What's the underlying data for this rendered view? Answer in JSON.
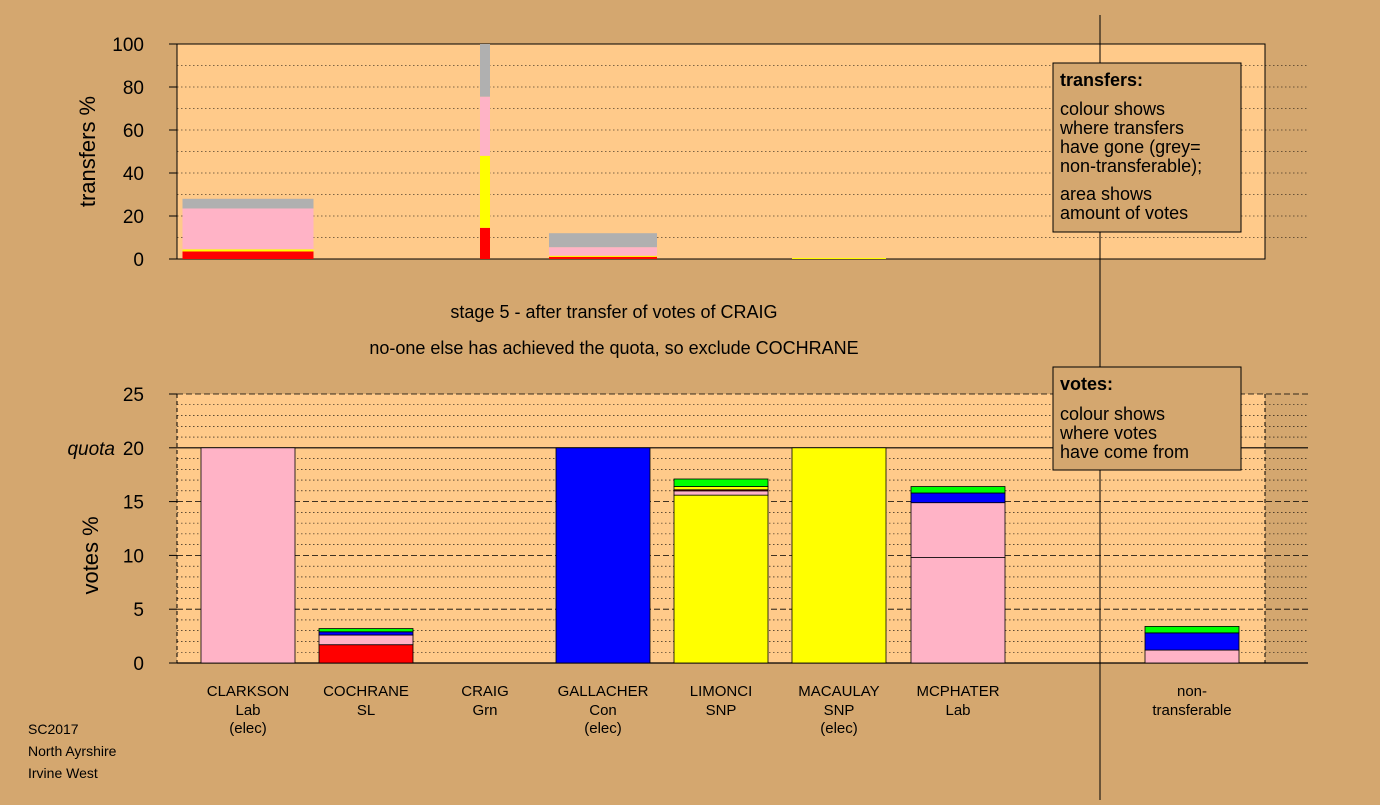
{
  "stage_text": "stage 5 - after transfer of votes of CRAIG",
  "action_text": "no-one else has achieved the quota, so exclude COCHRANE",
  "footer": [
    "SC2017",
    "North Ayrshire",
    "Irvine West"
  ],
  "legend_transfers": {
    "title": "transfers:",
    "lines": [
      "colour shows",
      "where transfers",
      "have gone (grey=",
      "non-transferable);"
    ],
    "lines2": [
      "area shows",
      "amount of votes"
    ]
  },
  "legend_votes": {
    "title": "votes:",
    "lines": [
      "colour shows",
      "where votes",
      "have come from"
    ]
  },
  "colors": {
    "background": "#d4a76f",
    "plot_bg": "#ffca8a",
    "Lab": "#ffb3c6",
    "SL": "#ff0000",
    "Grn": "#00ff00",
    "Con": "#0000ff",
    "SNP": "#ffff00",
    "non_transferable": "#b0b0b0"
  },
  "chart_data": [
    {
      "type": "bar",
      "stacked": true,
      "ylabel": "transfers %",
      "ylim": [
        0,
        100
      ],
      "yticks": [
        0,
        20,
        40,
        60,
        80,
        100
      ],
      "bars": [
        {
          "candidate": "CLARKSON",
          "width_share": 1.0,
          "segments": [
            {
              "party": "SL",
              "value": 3.5
            },
            {
              "party": "SNP",
              "value": 1.0
            },
            {
              "party": "Lab",
              "value": 19.0
            },
            {
              "party": "non_transferable",
              "value": 4.5
            }
          ]
        },
        {
          "candidate": "CRAIG",
          "width_share": 0.07,
          "segments": [
            {
              "party": "SL",
              "value": 14.5
            },
            {
              "party": "SNP",
              "value": 33.5
            },
            {
              "party": "Lab",
              "value": 27.5
            },
            {
              "party": "non_transferable",
              "value": 24.5
            }
          ]
        },
        {
          "candidate": "GALLACHER",
          "width_share": 0.8,
          "segments": [
            {
              "party": "SL",
              "value": 1.0
            },
            {
              "party": "SNP",
              "value": 0.5
            },
            {
              "party": "Lab",
              "value": 4.0
            },
            {
              "party": "non_transferable",
              "value": 6.5
            }
          ]
        },
        {
          "candidate": "MACAULAY",
          "width_share": 0.73,
          "segments": [
            {
              "party": "SNP",
              "value": 0.5
            }
          ]
        }
      ]
    },
    {
      "type": "bar",
      "stacked": true,
      "ylabel": "votes %",
      "ylim": [
        0,
        25
      ],
      "yticks": [
        0,
        5,
        10,
        15,
        20,
        25
      ],
      "quota": 20,
      "quota_label": "quota",
      "categories": [
        {
          "name": "CLARKSON",
          "party": "Lab",
          "status": "(elec)"
        },
        {
          "name": "COCHRANE",
          "party": "SL",
          "status": ""
        },
        {
          "name": "CRAIG",
          "party": "Grn",
          "status": ""
        },
        {
          "name": "GALLACHER",
          "party": "Con",
          "status": "(elec)"
        },
        {
          "name": "LIMONCI",
          "party": "SNP",
          "status": ""
        },
        {
          "name": "MACAULAY",
          "party": "SNP",
          "status": "(elec)"
        },
        {
          "name": "MCPHATER",
          "party": "Lab",
          "status": ""
        }
      ],
      "nontransferable_label": [
        "non-",
        "transferable"
      ],
      "series": [
        {
          "candidate": "CLARKSON",
          "segments": [
            {
              "party": "Lab",
              "value": 20.0
            }
          ]
        },
        {
          "candidate": "COCHRANE",
          "segments": [
            {
              "party": "SL",
              "value": 1.7
            },
            {
              "party": "Lab",
              "value": 0.9
            },
            {
              "party": "Con",
              "value": 0.3
            },
            {
              "party": "Grn",
              "value": 0.3
            }
          ]
        },
        {
          "candidate": "CRAIG",
          "segments": [
            {
              "party": "Grn",
              "value": 0.0
            }
          ]
        },
        {
          "candidate": "GALLACHER",
          "segments": [
            {
              "party": "Con",
              "value": 20.0
            }
          ]
        },
        {
          "candidate": "LIMONCI",
          "segments": [
            {
              "party": "SNP",
              "value": 15.6
            },
            {
              "party": "Lab",
              "value": 0.4
            },
            {
              "party": "SL",
              "value": 0.1
            },
            {
              "party": "SNP",
              "value": 0.3
            },
            {
              "party": "Grn",
              "value": 0.7
            }
          ]
        },
        {
          "candidate": "MACAULAY",
          "segments": [
            {
              "party": "SNP",
              "value": 20.0
            }
          ]
        },
        {
          "candidate": "MCPHATER",
          "segments": [
            {
              "party": "Lab",
              "value": 9.8
            },
            {
              "party": "Lab",
              "value": 5.1
            },
            {
              "party": "Con",
              "value": 0.9
            },
            {
              "party": "Grn",
              "value": 0.6
            }
          ]
        },
        {
          "candidate": "non-transferable",
          "segments": [
            {
              "party": "Lab",
              "value": 1.2
            },
            {
              "party": "Con",
              "value": 1.6
            },
            {
              "party": "Grn",
              "value": 0.6
            }
          ]
        }
      ]
    }
  ]
}
